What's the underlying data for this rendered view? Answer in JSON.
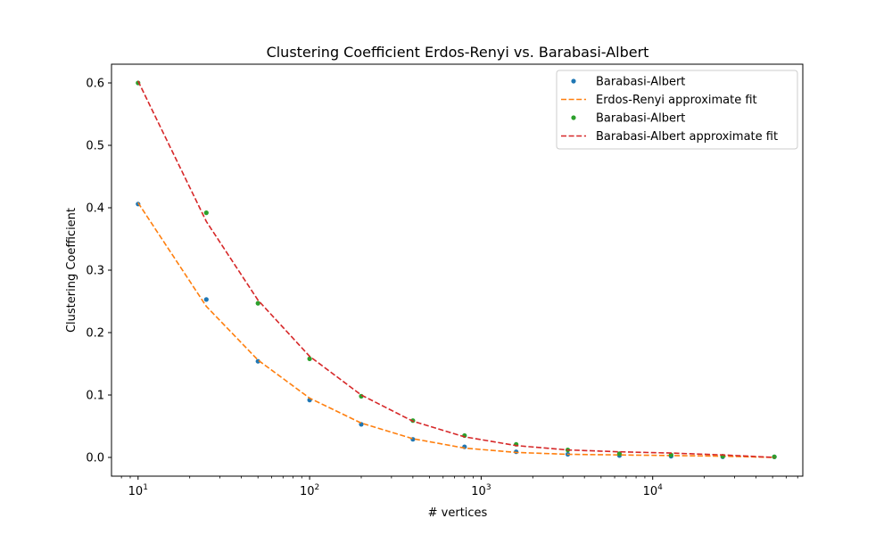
{
  "chart_data": {
    "type": "line",
    "title": "Clustering Coefficient Erdos-Renyi vs. Barabasi-Albert",
    "xlabel": "# vertices",
    "ylabel": "Clustering Coefficient",
    "xscale": "log",
    "xlim": [
      7,
      75000
    ],
    "ylim": [
      -0.03,
      0.63
    ],
    "yticks": [
      {
        "value": 0.0,
        "label": "0.0"
      },
      {
        "value": 0.1,
        "label": "0.1"
      },
      {
        "value": 0.2,
        "label": "0.2"
      },
      {
        "value": 0.3,
        "label": "0.3"
      },
      {
        "value": 0.4,
        "label": "0.4"
      },
      {
        "value": 0.5,
        "label": "0.5"
      },
      {
        "value": 0.6,
        "label": "0.6"
      }
    ],
    "xticks": [
      {
        "value": 10,
        "base": "10",
        "exp": "1"
      },
      {
        "value": 100,
        "base": "10",
        "exp": "2"
      },
      {
        "value": 1000,
        "base": "10",
        "exp": "3"
      },
      {
        "value": 10000,
        "base": "10",
        "exp": "4"
      }
    ],
    "grid": false,
    "legend_position": "top-right",
    "series": [
      {
        "name": "Barabasi-Albert",
        "style": "scatter",
        "color": "#1f77b4",
        "x": [
          10,
          25,
          50,
          100,
          200,
          400,
          800,
          1600,
          3200,
          6400,
          12800,
          25600,
          51200
        ],
        "y": [
          0.406,
          0.253,
          0.154,
          0.092,
          0.053,
          0.029,
          0.017,
          0.009,
          0.005,
          0.003,
          0.002,
          0.001,
          0.001
        ]
      },
      {
        "name": "Erdos-Renyi approximate fit",
        "style": "dashed",
        "color": "#ff7f0e",
        "x": [
          10,
          25,
          50,
          100,
          200,
          400,
          800,
          1600,
          3200,
          6400,
          12800,
          25600,
          51200
        ],
        "y": [
          0.408,
          0.242,
          0.156,
          0.095,
          0.055,
          0.03,
          0.015,
          0.008,
          0.005,
          0.004,
          0.003,
          0.002,
          0.0
        ]
      },
      {
        "name": "Barabasi-Albert",
        "style": "scatter",
        "color": "#2ca02c",
        "x": [
          10,
          25,
          50,
          100,
          200,
          400,
          800,
          1600,
          3200,
          6400,
          12800,
          25600,
          51200
        ],
        "y": [
          0.6,
          0.392,
          0.247,
          0.158,
          0.098,
          0.059,
          0.035,
          0.021,
          0.012,
          0.006,
          0.004,
          0.002,
          0.001
        ]
      },
      {
        "name": "Barabasi-Albert approximate fit",
        "style": "dashed",
        "color": "#d62728",
        "x": [
          10,
          25,
          50,
          100,
          200,
          400,
          800,
          1600,
          3200,
          6400,
          12800,
          25600,
          51200
        ],
        "y": [
          0.603,
          0.378,
          0.252,
          0.162,
          0.1,
          0.058,
          0.033,
          0.019,
          0.012,
          0.009,
          0.007,
          0.004,
          0.0
        ]
      }
    ]
  }
}
